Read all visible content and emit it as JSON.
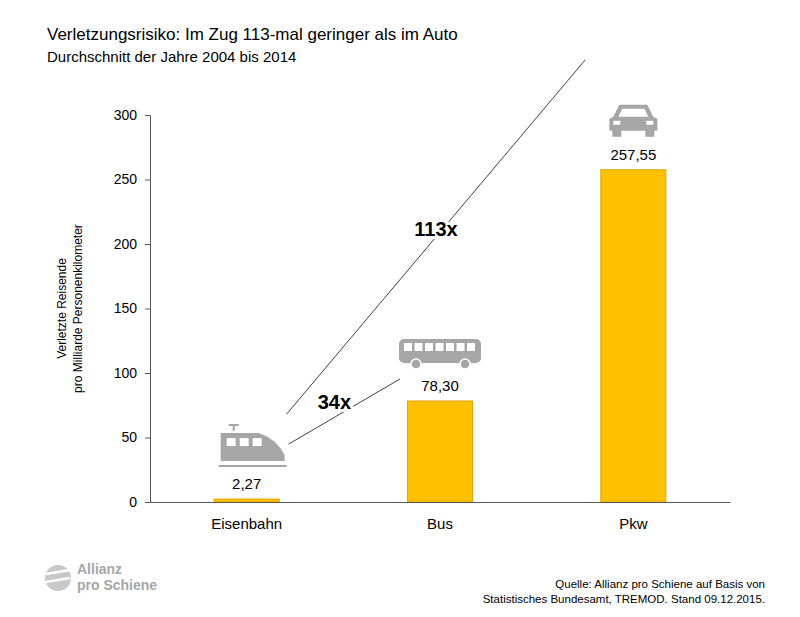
{
  "chart_data": {
    "type": "bar",
    "title": "Verletzungsrisiko: Im Zug 113-mal geringer als im Auto",
    "subtitle": "Durchschnitt der Jahre 2004 bis 2014",
    "y_label": [
      "Verletzte Reisende",
      "pro Milliarde Personenkilometer"
    ],
    "categories": [
      "Eisenbahn",
      "Bus",
      "Pkw"
    ],
    "values": [
      2.27,
      78.3,
      257.55
    ],
    "value_labels": [
      "2,27",
      "78,30",
      "257,55"
    ],
    "data_labels": true,
    "color": "#ffc000",
    "ylim": [
      0,
      300
    ],
    "yticks": [
      0,
      50,
      100,
      150,
      200,
      250,
      300
    ],
    "grid": false,
    "annotations": [
      {
        "text": "113x"
      },
      {
        "text": "34x"
      }
    ],
    "source": [
      "Quelle: Allianz pro Schiene auf Basis von",
      "Statistisches Bundesamt, TREMOD. Stand 09.12.2015."
    ],
    "logo": [
      "Allianz",
      "pro Schiene"
    ]
  }
}
